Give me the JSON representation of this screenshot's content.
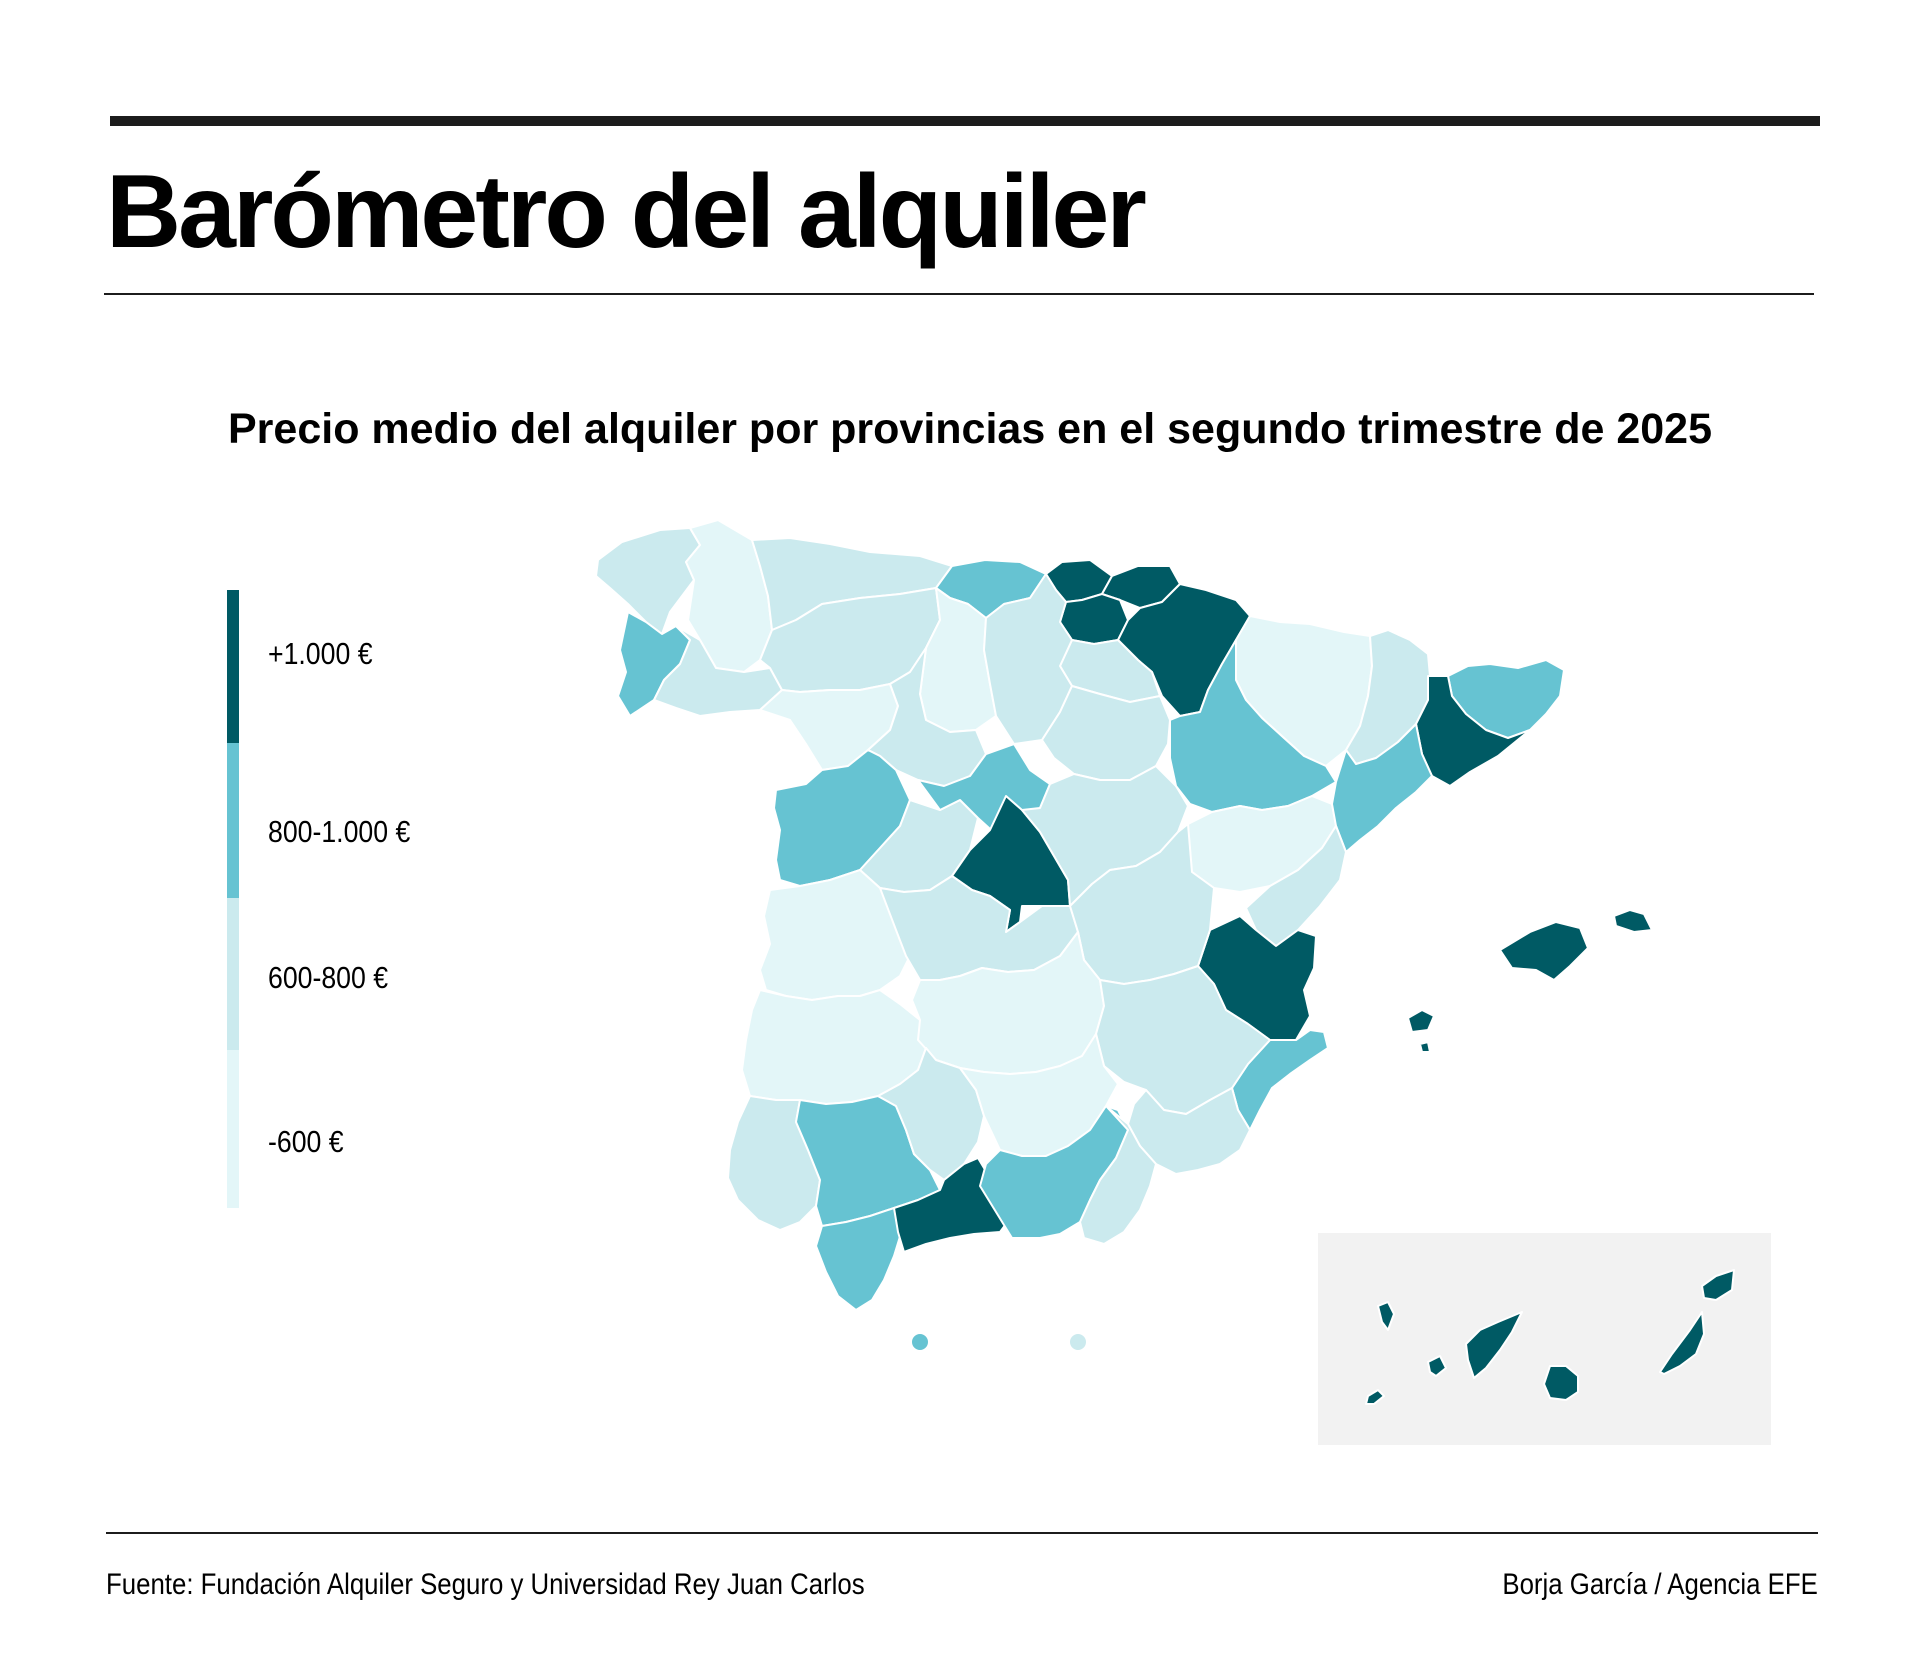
{
  "header": {
    "title": "Barómetro del alquiler",
    "subtitle": "Precio medio del alquiler por provincias en el segundo trimestre de 2025"
  },
  "legend": [
    {
      "label": "+1.000 €",
      "color": "#005a64"
    },
    {
      "label": "800-1.000 €",
      "color": "#66c3d2"
    },
    {
      "label": "600-800 €",
      "color": "#cbeaee"
    },
    {
      "label": "-600 €",
      "color": "#e3f6f8"
    }
  ],
  "colors": {
    "rule": "#1c1c1c",
    "province_border": "#ffffff",
    "canarias_inset_background": "#f2f2f2"
  },
  "map_data": {
    "type": "choropleth",
    "region": "España (provincias)",
    "categories": [
      "+1.000 €",
      "800-1.000 €",
      "600-800 €",
      "-600 €"
    ],
    "provinces": [
      {
        "name": "A Coruña",
        "category": "600-800 €"
      },
      {
        "name": "Lugo",
        "category": "-600 €"
      },
      {
        "name": "Pontevedra",
        "category": "800-1.000 €"
      },
      {
        "name": "Ourense",
        "category": "600-800 €"
      },
      {
        "name": "Asturias",
        "category": "600-800 €"
      },
      {
        "name": "Cantabria",
        "category": "800-1.000 €"
      },
      {
        "name": "Bizkaia",
        "category": "+1.000 €"
      },
      {
        "name": "Gipuzkoa",
        "category": "+1.000 €"
      },
      {
        "name": "Álava",
        "category": "+1.000 €"
      },
      {
        "name": "Navarra",
        "category": "+1.000 €"
      },
      {
        "name": "La Rioja",
        "category": "600-800 €"
      },
      {
        "name": "León",
        "category": "600-800 €"
      },
      {
        "name": "Palencia",
        "category": "-600 €"
      },
      {
        "name": "Burgos",
        "category": "600-800 €"
      },
      {
        "name": "Zamora",
        "category": "-600 €"
      },
      {
        "name": "Valladolid",
        "category": "600-800 €"
      },
      {
        "name": "Soria",
        "category": "600-800 €"
      },
      {
        "name": "Salamanca",
        "category": "800-1.000 €"
      },
      {
        "name": "Ávila",
        "category": "600-800 €"
      },
      {
        "name": "Segovia",
        "category": "800-1.000 €"
      },
      {
        "name": "Madrid",
        "category": "+1.000 €"
      },
      {
        "name": "Guadalajara",
        "category": "600-800 €"
      },
      {
        "name": "Huesca",
        "category": "-600 €"
      },
      {
        "name": "Zaragoza",
        "category": "800-1.000 €"
      },
      {
        "name": "Teruel",
        "category": "-600 €"
      },
      {
        "name": "Lleida",
        "category": "600-800 €"
      },
      {
        "name": "Girona",
        "category": "800-1.000 €"
      },
      {
        "name": "Barcelona",
        "category": "+1.000 €"
      },
      {
        "name": "Tarragona",
        "category": "800-1.000 €"
      },
      {
        "name": "Castellón",
        "category": "600-800 €"
      },
      {
        "name": "Valencia",
        "category": "+1.000 €"
      },
      {
        "name": "Alicante",
        "category": "800-1.000 €"
      },
      {
        "name": "Cáceres",
        "category": "-600 €"
      },
      {
        "name": "Badajoz",
        "category": "-600 €"
      },
      {
        "name": "Toledo",
        "category": "600-800 €"
      },
      {
        "name": "Cuenca",
        "category": "600-800 €"
      },
      {
        "name": "Ciudad Real",
        "category": "-600 €"
      },
      {
        "name": "Albacete",
        "category": "600-800 €"
      },
      {
        "name": "Murcia",
        "category": "600-800 €"
      },
      {
        "name": "Huelva",
        "category": "600-800 €"
      },
      {
        "name": "Sevilla",
        "category": "800-1.000 €"
      },
      {
        "name": "Córdoba",
        "category": "600-800 €"
      },
      {
        "name": "Jaén",
        "category": "-600 €"
      },
      {
        "name": "Cádiz",
        "category": "800-1.000 €"
      },
      {
        "name": "Málaga",
        "category": "+1.000 €"
      },
      {
        "name": "Granada",
        "category": "800-1.000 €"
      },
      {
        "name": "Almería",
        "category": "600-800 €"
      },
      {
        "name": "Illes Balears",
        "category": "+1.000 €"
      },
      {
        "name": "Santa Cruz de Tenerife",
        "category": "+1.000 €"
      },
      {
        "name": "Las Palmas",
        "category": "+1.000 €"
      },
      {
        "name": "Ceuta",
        "category": "800-1.000 €"
      },
      {
        "name": "Melilla",
        "category": "600-800 €"
      }
    ]
  },
  "footer": {
    "source": "Fuente: Fundación Alquiler Seguro y Universidad Rey Juan Carlos",
    "credit": "Borja García / Agencia EFE"
  }
}
